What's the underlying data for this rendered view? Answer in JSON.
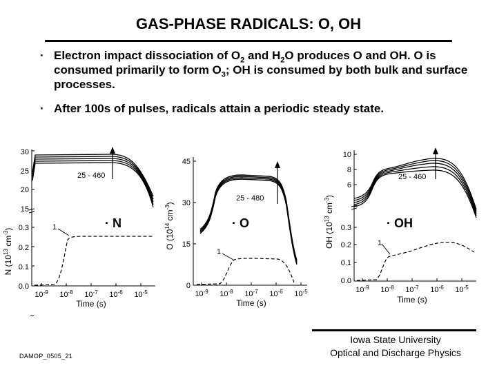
{
  "slide": {
    "title": "GAS-PHASE RADICALS: O, OH",
    "bullet_symbol": "·",
    "bullets": [
      {
        "parts": [
          "Electron impact dissociation of O",
          "2",
          " and H",
          "2",
          "O produces O and OH.  O is consumed primarily to form O",
          "3",
          "; OH is consumed by both bulk and surface processes."
        ]
      },
      {
        "parts": [
          "After 100s of pulses, radicals attain a periodic steady state."
        ]
      }
    ],
    "footer_code": "DAMOP_0505_21",
    "footer_institution": "Iowa State University",
    "footer_group": "Optical and Discharge Physics"
  },
  "chart_data": [
    {
      "type": "line",
      "species_label": "N",
      "xlabel": "Time (s)",
      "ylabel_parts": [
        "N (10",
        "13",
        " cm",
        "-3",
        ")"
      ],
      "x_tick_labels": [
        [
          "10",
          "-9"
        ],
        [
          "10",
          "-8"
        ],
        [
          "10",
          "-7"
        ],
        [
          "10",
          "-6"
        ],
        [
          "10",
          "-5"
        ]
      ],
      "upper_ticks": [
        "15",
        "20",
        "25",
        "30"
      ],
      "lower_ticks": [
        "0.0",
        "0.1",
        "0.2",
        "0.3"
      ],
      "pulse_range_label": "25 - 460",
      "pulse_one_label": "1"
    },
    {
      "type": "line",
      "species_label": "O",
      "xlabel": "Time (s)",
      "ylabel_parts": [
        "O (10",
        "14",
        " cm",
        "-3",
        ")"
      ],
      "x_tick_labels": [
        [
          "10",
          "-9"
        ],
        [
          "10",
          "-8"
        ],
        [
          "10",
          "-7"
        ],
        [
          "10",
          "-6"
        ],
        [
          "10",
          "-5"
        ]
      ],
      "y_ticks": [
        "0",
        "15",
        "30",
        "45"
      ],
      "pulse_range_label": "25 - 480",
      "pulse_one_label": "1"
    },
    {
      "type": "line",
      "species_label": "OH",
      "xlabel": "Time (s)",
      "ylabel_parts": [
        "OH (10",
        "13",
        " cm",
        "-3",
        ")"
      ],
      "x_tick_labels": [
        [
          "10",
          "-9"
        ],
        [
          "10",
          "-8"
        ],
        [
          "10",
          "-7"
        ],
        [
          "10",
          "-6"
        ],
        [
          "10",
          "-5"
        ]
      ],
      "upper_ticks": [
        "6",
        "8",
        "10"
      ],
      "lower_ticks": [
        "0.0",
        "0.1",
        "0.2",
        "0.3"
      ],
      "pulse_range_label": "25 - 460",
      "pulse_one_label": "1"
    }
  ]
}
